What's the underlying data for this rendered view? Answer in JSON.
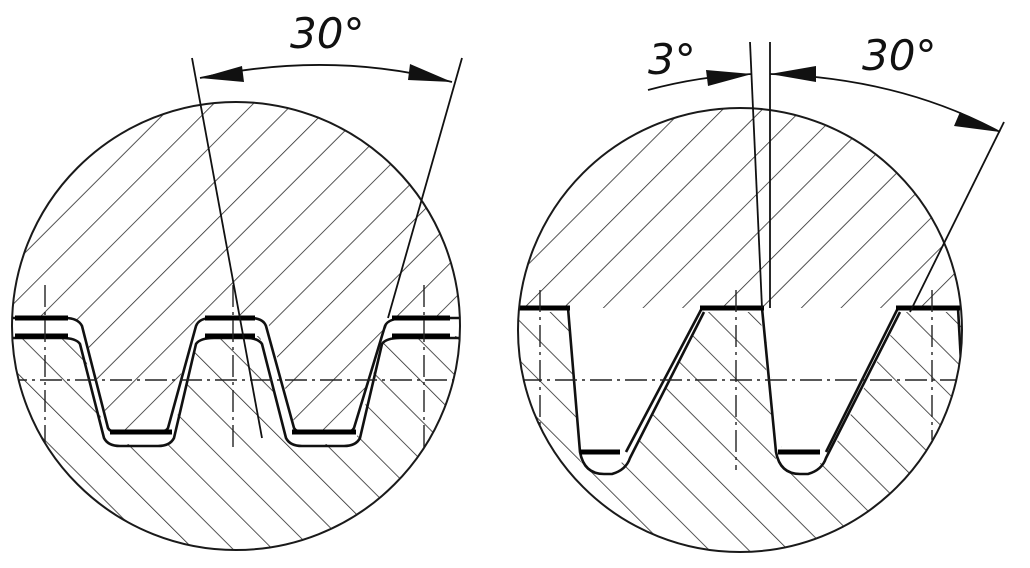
{
  "figures": [
    {
      "name": "trapezoidal-thread-detail",
      "angle_labels": [
        "30°"
      ]
    },
    {
      "name": "buttress-thread-detail",
      "angle_labels": [
        "3°",
        "30°"
      ]
    }
  ]
}
